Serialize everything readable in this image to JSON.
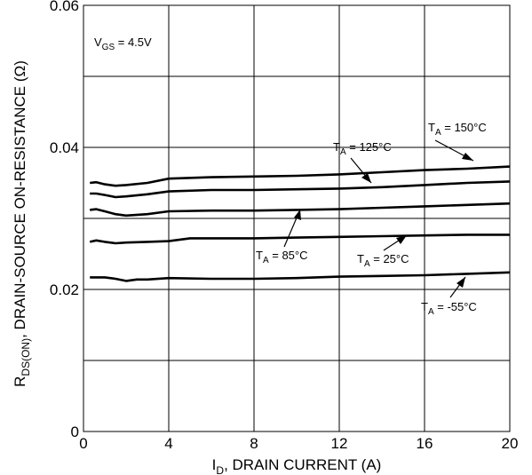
{
  "chart_data": {
    "type": "line",
    "title": "",
    "xlabel": {
      "main": "I",
      "sub": "D",
      "rest": ", DRAIN CURRENT (A)"
    },
    "ylabel": {
      "main": "R",
      "sub": "DS(ON)",
      "rest": ",  DRAIN-SOURCE ON-RESISTANCE (Ω)"
    },
    "xlim": [
      0,
      20
    ],
    "ylim": [
      0,
      0.06
    ],
    "x_ticks": [
      0,
      4,
      8,
      12,
      16,
      20
    ],
    "x_tick_labels": [
      "0",
      "4",
      "8",
      "12",
      "16",
      "20"
    ],
    "y_ticks": [
      0,
      0.02,
      0.04,
      0.06
    ],
    "y_tick_labels": [
      "0",
      "0.02",
      "0.04",
      "0.06"
    ],
    "x_grid": [
      0,
      4,
      8,
      12,
      16,
      20
    ],
    "y_grid": [
      0,
      0.01,
      0.02,
      0.03,
      0.04,
      0.05,
      0.06
    ],
    "grid": true,
    "condition": {
      "main": "V",
      "sub": "GS",
      "rest": " = 4.5V"
    },
    "series": [
      {
        "name": "150°C",
        "label": {
          "main": "T",
          "sub": "A",
          "rest": " = 150°C"
        },
        "x": [
          0.3,
          0.6,
          1.0,
          1.5,
          2.0,
          3.0,
          4.0,
          6.0,
          8.0,
          10.0,
          12.0,
          14.0,
          16.0,
          18.0,
          20.0
        ],
        "y": [
          0.035,
          0.0351,
          0.0348,
          0.0346,
          0.0347,
          0.035,
          0.0356,
          0.0358,
          0.0359,
          0.036,
          0.0362,
          0.0365,
          0.0368,
          0.037,
          0.0373
        ]
      },
      {
        "name": "125°C",
        "label": {
          "main": "T",
          "sub": "A",
          "rest": " = 125°C"
        },
        "x": [
          0.3,
          0.6,
          1.0,
          1.5,
          2.0,
          3.0,
          4.0,
          6.0,
          8.0,
          10.0,
          12.0,
          14.0,
          16.0,
          18.0,
          20.0
        ],
        "y": [
          0.0335,
          0.0335,
          0.0333,
          0.033,
          0.0331,
          0.0334,
          0.0338,
          0.034,
          0.034,
          0.0341,
          0.0342,
          0.0344,
          0.0347,
          0.035,
          0.0352
        ]
      },
      {
        "name": "85°C",
        "label": {
          "main": "T",
          "sub": "A",
          "rest": " = 85°C"
        },
        "x": [
          0.3,
          0.6,
          1.0,
          1.5,
          2.0,
          3.0,
          4.0,
          6.0,
          8.0,
          10.0,
          12.0,
          14.0,
          16.0,
          18.0,
          20.0
        ],
        "y": [
          0.0312,
          0.0313,
          0.031,
          0.0306,
          0.0304,
          0.0306,
          0.031,
          0.0311,
          0.0311,
          0.0312,
          0.0313,
          0.0315,
          0.0317,
          0.0319,
          0.0321
        ]
      },
      {
        "name": "25°C",
        "label": {
          "main": "T",
          "sub": "A",
          "rest": " = 25°C"
        },
        "x": [
          0.3,
          0.6,
          1.0,
          1.5,
          2.0,
          3.0,
          4.0,
          5.0,
          8.0,
          10.0,
          12.0,
          14.0,
          16.0,
          18.0,
          20.0
        ],
        "y": [
          0.0267,
          0.0269,
          0.0267,
          0.0265,
          0.0266,
          0.0267,
          0.0268,
          0.0272,
          0.0272,
          0.0273,
          0.0274,
          0.0275,
          0.0276,
          0.0277,
          0.0277
        ]
      },
      {
        "name": "-55°C",
        "label": {
          "main": "T",
          "sub": "A",
          "rest": " = -55°C"
        },
        "x": [
          0.3,
          0.6,
          1.0,
          1.5,
          2.0,
          2.5,
          3.0,
          4.0,
          6.0,
          8.0,
          10.0,
          12.0,
          14.0,
          16.0,
          18.0,
          20.0
        ],
        "y": [
          0.0217,
          0.0217,
          0.0217,
          0.0215,
          0.0212,
          0.0214,
          0.0214,
          0.0216,
          0.0215,
          0.0215,
          0.0216,
          0.0218,
          0.0219,
          0.022,
          0.0222,
          0.0224
        ]
      }
    ]
  }
}
